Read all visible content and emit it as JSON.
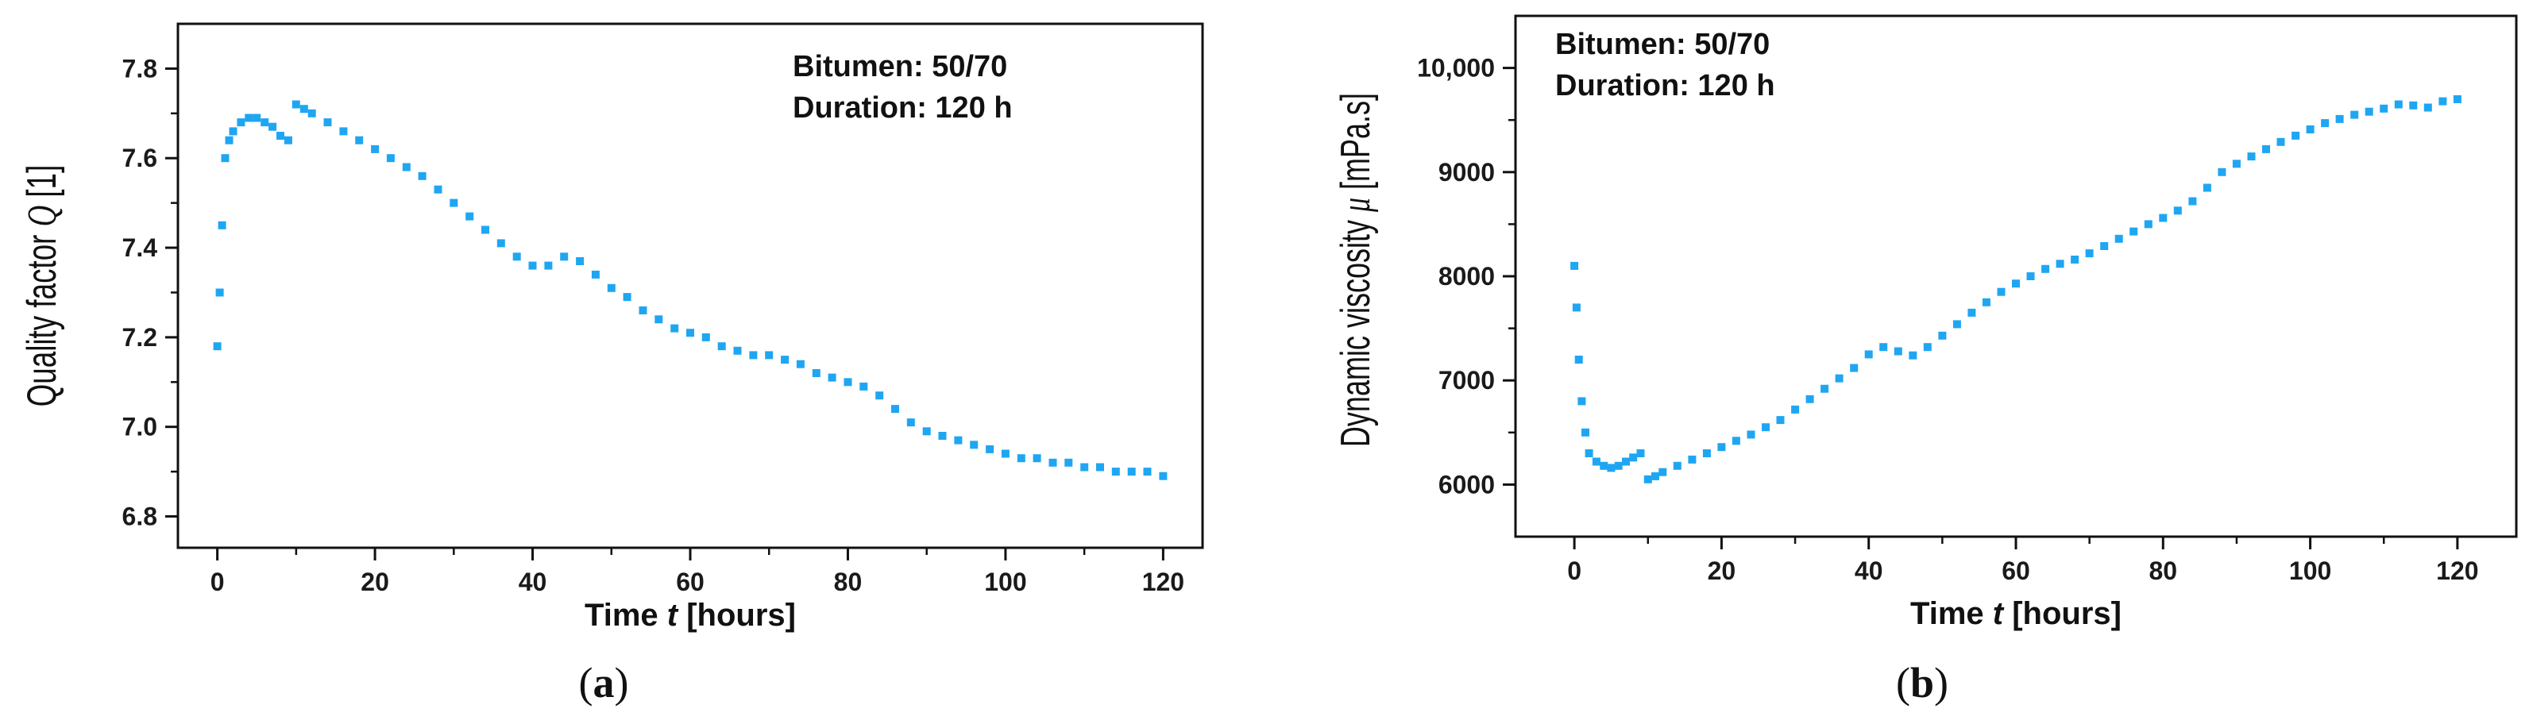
{
  "panel_a": {
    "label_prefix": "(",
    "label_letter": "a",
    "label_suffix": ")",
    "annotation_line1": "Bitumen: 50/70",
    "annotation_line2": "Duration: 120 h",
    "ylabel_text": "Quality factor ",
    "ylabel_symbol": "Q",
    "ylabel_unit": " [1]",
    "xlabel_text": "Time ",
    "xlabel_symbol": "t",
    "xlabel_unit": " [hours]",
    "xticks": [
      "0",
      "20",
      "40",
      "60",
      "80",
      "100",
      "120"
    ],
    "yticks": [
      "6.8",
      "7.0",
      "7.2",
      "7.4",
      "7.6",
      "7.8"
    ]
  },
  "panel_b": {
    "label_prefix": "(",
    "label_letter": "b",
    "label_suffix": ")",
    "annotation_line1": "Bitumen: 50/70",
    "annotation_line2": "Duration: 120 h",
    "ylabel_text": "Dynamic viscosity ",
    "ylabel_symbol": "μ",
    "ylabel_unit": " [mPa.s]",
    "xlabel_text": "Time ",
    "xlabel_symbol": "t",
    "xlabel_unit": " [hours]",
    "xticks": [
      "0",
      "20",
      "40",
      "60",
      "80",
      "100",
      "120"
    ],
    "yticks": [
      "6000",
      "7000",
      "8000",
      "9000",
      "10,000"
    ]
  },
  "chart_data": [
    {
      "type": "scatter",
      "title": "",
      "xlabel": "Time t [hours]",
      "ylabel": "Quality factor Q [1]",
      "xlim": [
        -5,
        125
      ],
      "ylim": [
        6.73,
        7.9
      ],
      "grid": false,
      "marker_color": "#1fa6f2",
      "series": [
        {
          "x": [
            0,
            0.3,
            0.6,
            1,
            1.5,
            2,
            3,
            4,
            5,
            6,
            7,
            8,
            9,
            10,
            11,
            12,
            14,
            16,
            18,
            20,
            22,
            24,
            26,
            28,
            30,
            32,
            34,
            36,
            38,
            40,
            42,
            44,
            46,
            48,
            50,
            52,
            54,
            56,
            58,
            60,
            62,
            64,
            66,
            68,
            70,
            72,
            74,
            76,
            78,
            80,
            82,
            84,
            86,
            88,
            90,
            92,
            94,
            96,
            98,
            100,
            102,
            104,
            106,
            108,
            110,
            112,
            114,
            116,
            118,
            120
          ],
          "y": [
            7.18,
            7.3,
            7.45,
            7.6,
            7.64,
            7.66,
            7.68,
            7.69,
            7.69,
            7.68,
            7.67,
            7.65,
            7.64,
            7.72,
            7.71,
            7.7,
            7.68,
            7.66,
            7.64,
            7.62,
            7.6,
            7.58,
            7.56,
            7.53,
            7.5,
            7.47,
            7.44,
            7.41,
            7.38,
            7.36,
            7.36,
            7.38,
            7.37,
            7.34,
            7.31,
            7.29,
            7.26,
            7.24,
            7.22,
            7.21,
            7.2,
            7.18,
            7.17,
            7.16,
            7.16,
            7.15,
            7.14,
            7.12,
            7.11,
            7.1,
            7.09,
            7.07,
            7.04,
            7.01,
            6.99,
            6.98,
            6.97,
            6.96,
            6.95,
            6.94,
            6.93,
            6.93,
            6.92,
            6.92,
            6.91,
            6.91,
            6.9,
            6.9,
            6.9,
            6.89
          ]
        }
      ]
    },
    {
      "type": "scatter",
      "title": "",
      "xlabel": "Time t [hours]",
      "ylabel": "Dynamic viscosity μ [mPa.s]",
      "xlim": [
        -8,
        128
      ],
      "ylim": [
        5500,
        10500
      ],
      "grid": false,
      "marker_color": "#1fa6f2",
      "series": [
        {
          "x": [
            0,
            0.3,
            0.6,
            1,
            1.5,
            2,
            3,
            4,
            5,
            6,
            7,
            8,
            9,
            10,
            11,
            12,
            14,
            16,
            18,
            20,
            22,
            24,
            26,
            28,
            30,
            32,
            34,
            36,
            38,
            40,
            42,
            44,
            46,
            48,
            50,
            52,
            54,
            56,
            58,
            60,
            62,
            64,
            66,
            68,
            70,
            72,
            74,
            76,
            78,
            80,
            82,
            84,
            86,
            88,
            90,
            92,
            94,
            96,
            98,
            100,
            102,
            104,
            106,
            108,
            110,
            112,
            114,
            116,
            118,
            120
          ],
          "y": [
            8100,
            7700,
            7200,
            6800,
            6500,
            6300,
            6220,
            6180,
            6160,
            6180,
            6220,
            6260,
            6300,
            6050,
            6080,
            6120,
            6180,
            6240,
            6300,
            6360,
            6420,
            6480,
            6550,
            6620,
            6720,
            6820,
            6920,
            7020,
            7120,
            7250,
            7320,
            7280,
            7240,
            7320,
            7430,
            7540,
            7650,
            7750,
            7850,
            7930,
            8000,
            8070,
            8120,
            8160,
            8220,
            8290,
            8360,
            8430,
            8500,
            8560,
            8630,
            8720,
            8850,
            9000,
            9080,
            9150,
            9220,
            9290,
            9350,
            9410,
            9470,
            9510,
            9550,
            9580,
            9610,
            9650,
            9640,
            9620,
            9680,
            9700
          ]
        }
      ]
    }
  ]
}
